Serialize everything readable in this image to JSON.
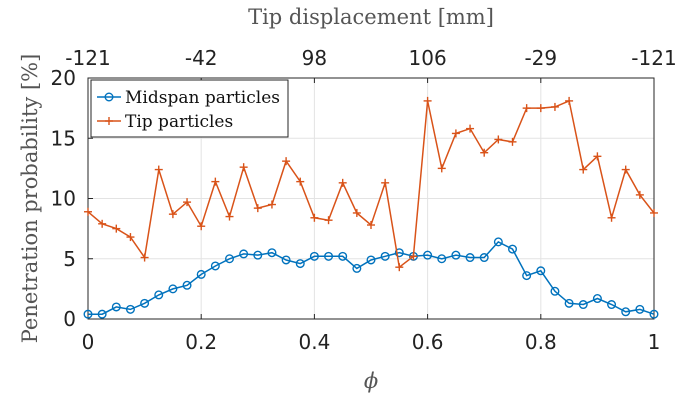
{
  "chart_data": {
    "type": "line",
    "title": "",
    "xlabel": "ϕ",
    "ylabel": "Penetration probability [%]",
    "top_xlabel": "Tip displacement [mm]",
    "xlim": [
      0,
      1
    ],
    "ylim": [
      0,
      20
    ],
    "grid": true,
    "legend_position": "top-left",
    "x_ticks": [
      "0",
      "0.2",
      "0.4",
      "0.6",
      "0.8",
      "1"
    ],
    "y_ticks": [
      "0",
      "5",
      "10",
      "15",
      "20"
    ],
    "top_x_ticks": [
      "-121",
      "-42",
      "98",
      "106",
      "-29",
      "-121"
    ],
    "x": [
      0,
      0.025,
      0.05,
      0.075,
      0.1,
      0.125,
      0.15,
      0.175,
      0.2,
      0.225,
      0.25,
      0.275,
      0.3,
      0.325,
      0.35,
      0.375,
      0.4,
      0.425,
      0.45,
      0.475,
      0.5,
      0.525,
      0.55,
      0.575,
      0.6,
      0.625,
      0.65,
      0.675,
      0.7,
      0.725,
      0.75,
      0.775,
      0.8,
      0.825,
      0.85,
      0.875,
      0.9,
      0.925,
      0.95,
      0.975,
      1
    ],
    "series": [
      {
        "name": "Midspan particles",
        "color": "#0072BD",
        "marker": "circle",
        "values": [
          0.4,
          0.4,
          1.0,
          0.8,
          1.3,
          2.0,
          2.5,
          2.8,
          3.7,
          4.4,
          5.0,
          5.4,
          5.3,
          5.5,
          4.9,
          4.6,
          5.2,
          5.2,
          5.2,
          4.2,
          4.9,
          5.2,
          5.5,
          5.2,
          5.3,
          5.0,
          5.3,
          5.1,
          5.1,
          6.4,
          5.8,
          3.6,
          4.0,
          2.3,
          1.3,
          1.2,
          1.7,
          1.2,
          0.6,
          0.8,
          0.4
        ]
      },
      {
        "name": "Tip particles",
        "color": "#D95319",
        "marker": "plus",
        "values": [
          8.9,
          7.9,
          7.5,
          6.8,
          5.1,
          12.4,
          8.7,
          9.7,
          7.7,
          11.4,
          8.5,
          12.6,
          9.2,
          9.5,
          13.1,
          11.4,
          8.4,
          8.2,
          11.3,
          8.8,
          7.8,
          11.3,
          4.3,
          5.2,
          18.1,
          12.5,
          15.4,
          15.8,
          13.8,
          14.9,
          14.7,
          17.5,
          17.5,
          17.6,
          18.1,
          12.4,
          13.5,
          8.4,
          12.4,
          10.3,
          8.8
        ]
      }
    ]
  }
}
